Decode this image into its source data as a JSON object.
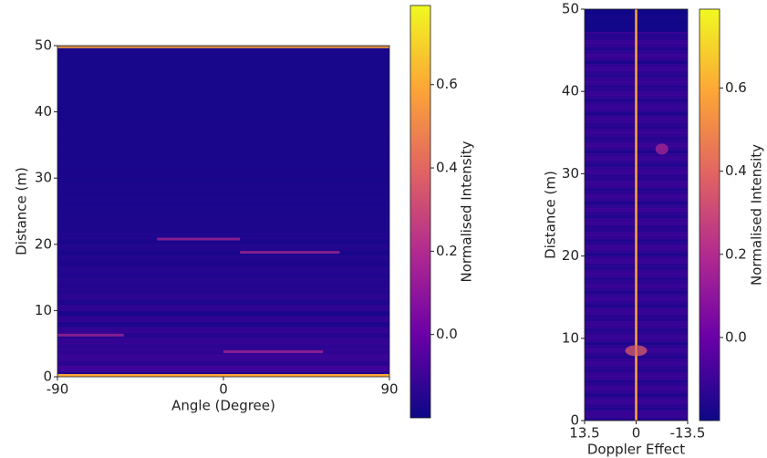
{
  "chart_data": [
    {
      "type": "heatmap",
      "xlabel": "Angle (Degree)",
      "ylabel": "Distance (m)",
      "xlim": [
        -90,
        90
      ],
      "xticks": [
        -90,
        0,
        90
      ],
      "ylim": [
        0,
        50
      ],
      "yticks": [
        0,
        10,
        20,
        30,
        40,
        50
      ],
      "colormap": [
        "#0d0887",
        "#6a00a8",
        "#b12a90",
        "#e16462",
        "#fca636",
        "#f0f921"
      ],
      "colorbar": {
        "label": "Normalised Intensity",
        "lim": [
          -0.2,
          0.79
        ],
        "ticks": [
          {
            "value": 0,
            "label": "0.0"
          },
          0.2,
          0.4,
          0.6
        ]
      }
    },
    {
      "type": "heatmap",
      "xlabel": "Doppler Effect",
      "ylabel": "Distance (m)",
      "xlim": [
        13.5,
        -13.5
      ],
      "xticks": [
        13.5,
        0,
        -13.5
      ],
      "ylim": [
        0,
        50
      ],
      "yticks": [
        0,
        10,
        20,
        30,
        40,
        50
      ],
      "colormap": [
        "#0d0887",
        "#6a00a8",
        "#b12a90",
        "#e16462",
        "#fca636",
        "#f0f921"
      ],
      "colorbar": {
        "label": "Normalised Intensity",
        "lim": [
          -0.2,
          0.79
        ],
        "ticks": [
          {
            "value": 0,
            "label": "0.0"
          },
          0.2,
          0.4,
          0.6
        ]
      }
    }
  ]
}
